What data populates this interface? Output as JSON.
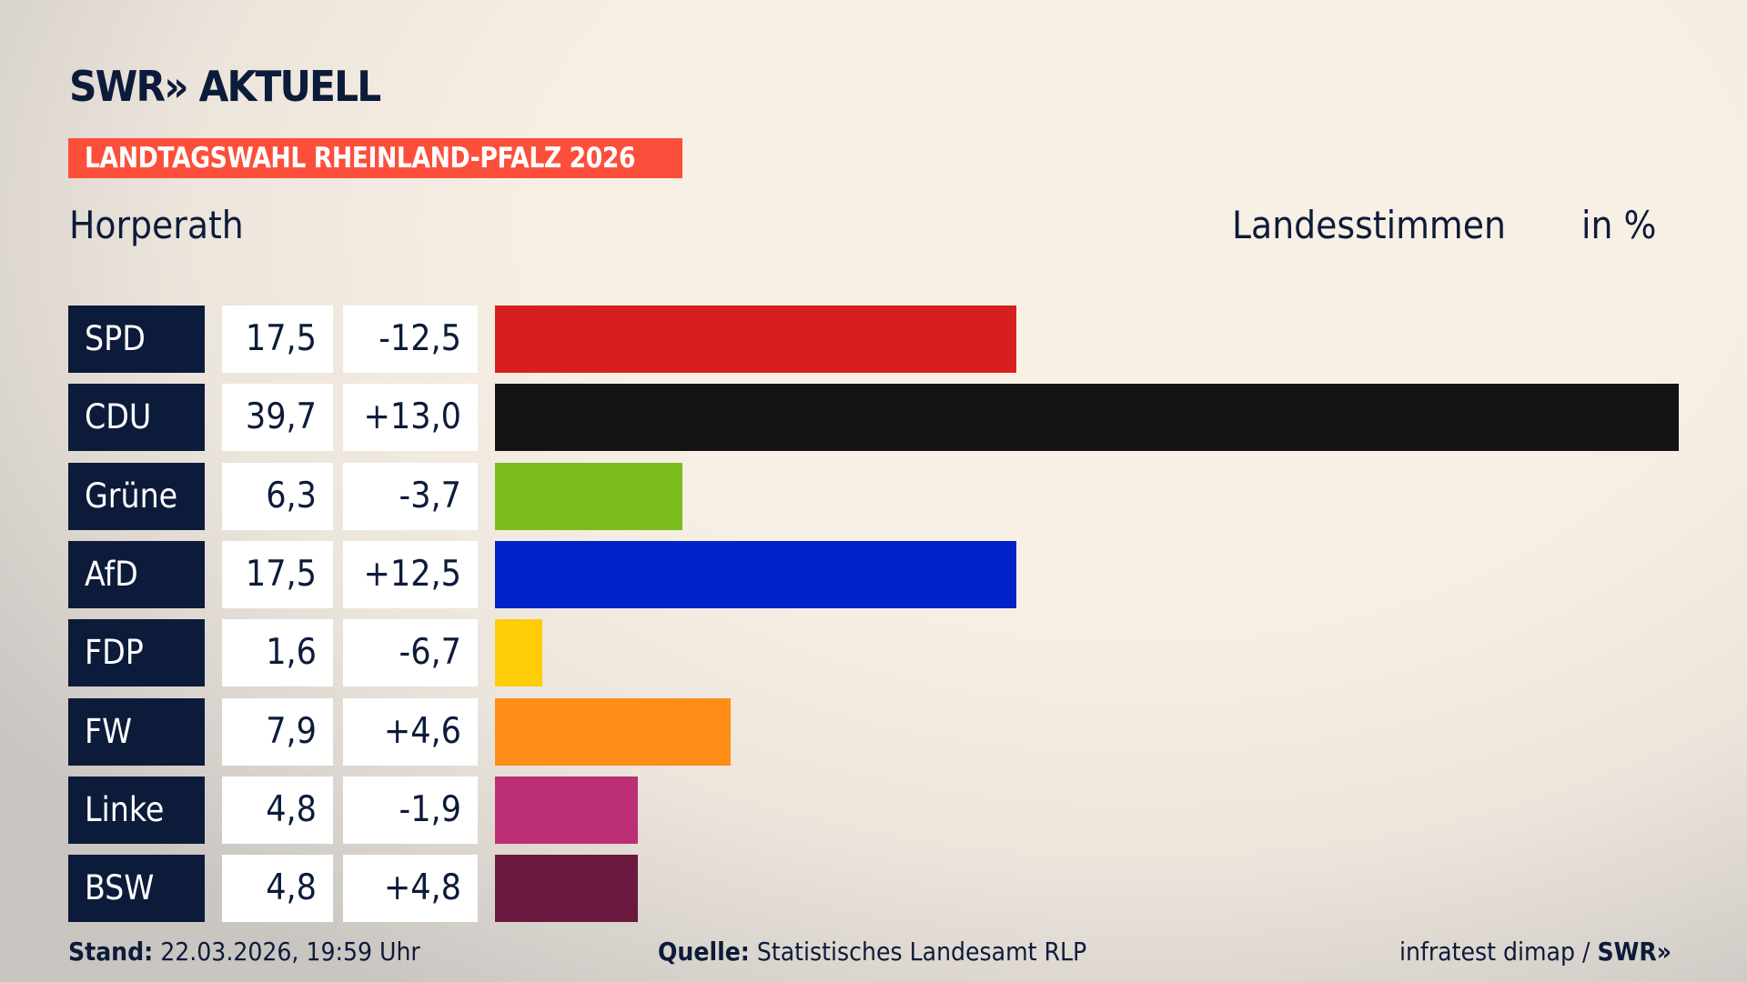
{
  "header": {
    "logo_text": "SWR» AKTUELL",
    "banner": "LANDTAGSWAHL RHEINLAND-PFALZ 2026",
    "location": "Horperath",
    "measure": "Landesstimmen",
    "unit": "in %"
  },
  "chart_data": {
    "type": "bar",
    "orientation": "horizontal",
    "title": "Landtagswahl Rheinland-Pfalz 2026 – Horperath – Landesstimmen in %",
    "categories": [
      "SPD",
      "CDU",
      "Grüne",
      "AfD",
      "FDP",
      "FW",
      "Linke",
      "BSW"
    ],
    "values": [
      17.5,
      39.7,
      6.3,
      17.5,
      1.6,
      7.9,
      4.8,
      4.8
    ],
    "value_labels": [
      "17,5",
      "39,7",
      "6,3",
      "17,5",
      "1,6",
      "7,9",
      "4,8",
      "4,8"
    ],
    "diff_labels": [
      "-12,5",
      "+13,0",
      "-3,7",
      "+12,5",
      "-6,7",
      "+4,6",
      "-1,9",
      "+4,8"
    ],
    "colors": [
      "#d81f1f",
      "#141414",
      "#7abd1d",
      "#0022c8",
      "#ffcc08",
      "#ff8d17",
      "#bd2f74",
      "#6a1a3f"
    ],
    "xlim": [
      0,
      39.7
    ]
  },
  "footer": {
    "stand_label": "Stand:",
    "stand_value": "22.03.2026, 19:59 Uhr",
    "source_label": "Quelle:",
    "source_value": "Statistisches Landesamt RLP",
    "credit": "infratest dimap /",
    "credit_logo": "SWR»"
  }
}
